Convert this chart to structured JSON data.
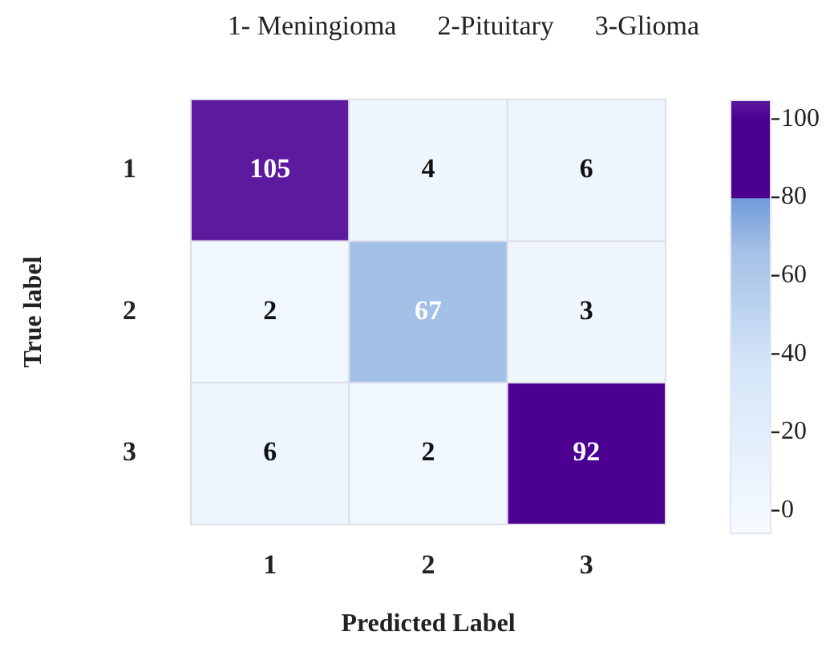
{
  "chart_data": {
    "type": "heatmap",
    "title": "1- Meningioma      2-Pituitary      3-Glioma",
    "xlabel": "Predicted Label",
    "ylabel": "True label",
    "categories": [
      "1",
      "2",
      "3"
    ],
    "y_categories": [
      "1",
      "2",
      "3"
    ],
    "cells": [
      [
        105,
        4,
        6
      ],
      [
        2,
        67,
        3
      ],
      [
        6,
        2,
        92
      ]
    ],
    "clim": [
      -6,
      105
    ],
    "cticks": [
      0,
      20,
      40,
      60,
      80,
      100
    ],
    "data_labels": true
  }
}
